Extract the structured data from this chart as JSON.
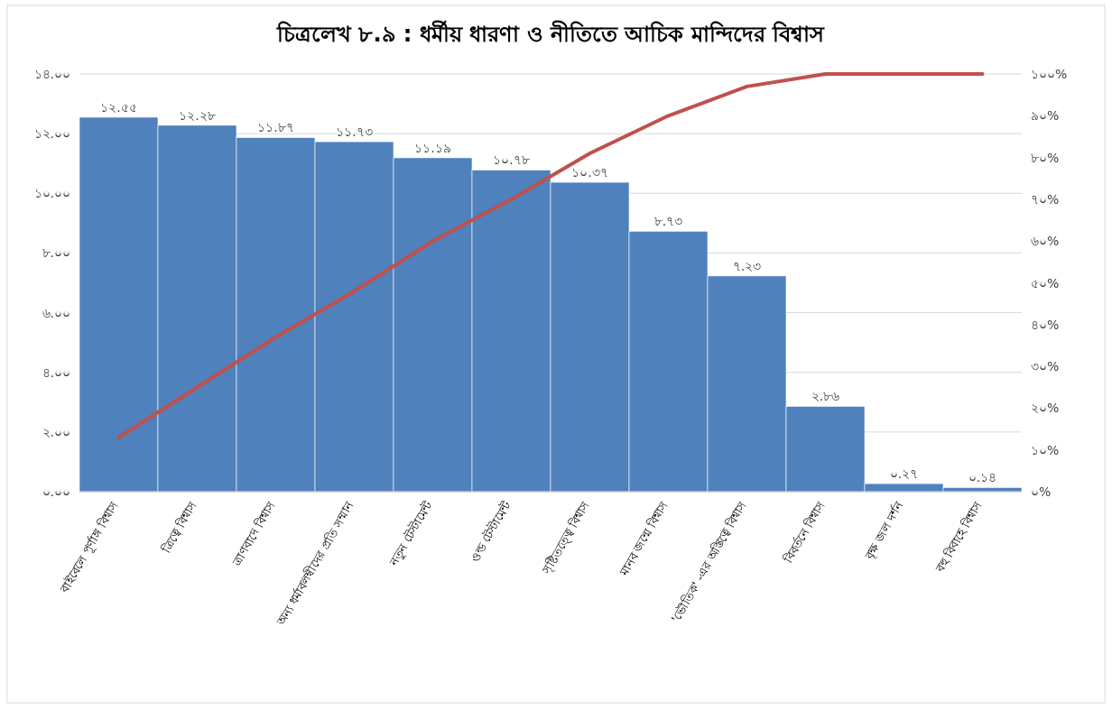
{
  "chart_data": {
    "type": "bar",
    "title": "চিত্রলেখ ৮.৯ : ধর্মীয় ধারণা ও নীতিতে আচিক মান্দিদের বিশ্বাস",
    "categories": [
      "বাইবেলে পূর্ণাঙ্গ বিশ্বাস",
      "ত্রিত্বে বিশ্বাস",
      "ত্রাণবাদে বিশ্বাস",
      "অন্য ধর্মাবলম্বীদের প্রতি সম্মান",
      "নতুন টেস্টামেন্ট",
      "ওল্ড টেস্টামেন্ট",
      "সৃষ্টিতত্ত্বে বিশ্বাস",
      "মানব জন্মে বিশ্বাস",
      "'ভৌতিক' -এর অস্তিত্বে বিশ্বাস",
      "বিবর্তনে বিশ্বাস",
      "বৃক্ষ জল দর্শন",
      "বহু বিবাহে বিশ্বাস"
    ],
    "series": [
      {
        "color": "#4f81bd",
        "values": [
          12.55,
          12.28,
          11.87,
          11.73,
          11.19,
          10.78,
          10.37,
          8.73,
          7.23,
          2.86,
          0.27,
          0.14
        ],
        "value_labels": [
          "১২.৫৫",
          "১২.২৮",
          "১১.৮৭",
          "১১.৭৩",
          "১১.১৯",
          "১০.৭৮",
          "১০.৩৭",
          "৮.৭৩",
          "৭.২৩",
          "২.৮৬",
          "০.২৭",
          "০.১৪"
        ]
      },
      {
        "type": "line",
        "axis": "y2",
        "color": "#c0504d",
        "values": [
          13,
          25,
          37,
          48,
          60,
          70,
          81,
          90,
          97,
          100,
          100,
          100
        ]
      }
    ],
    "ylim": [
      0,
      14
    ],
    "yticks": [
      {
        "value": 0,
        "label": "০.০০"
      },
      {
        "value": 2,
        "label": "২.০০"
      },
      {
        "value": 4,
        "label": "৪.০০"
      },
      {
        "value": 6,
        "label": "৬.০০"
      },
      {
        "value": 8,
        "label": "৮.০০"
      },
      {
        "value": 10,
        "label": "১০.০০"
      },
      {
        "value": 12,
        "label": "১২.০০"
      },
      {
        "value": 14,
        "label": "১৪.০০"
      }
    ],
    "y2lim": [
      0,
      100
    ],
    "y2ticks": [
      {
        "value": 0,
        "label": "০%"
      },
      {
        "value": 10,
        "label": "১০%"
      },
      {
        "value": 20,
        "label": "২০%"
      },
      {
        "value": 30,
        "label": "৩০%"
      },
      {
        "value": 40,
        "label": "৪০%"
      },
      {
        "value": 50,
        "label": "৫০%"
      },
      {
        "value": 60,
        "label": "৬০%"
      },
      {
        "value": 70,
        "label": "৭০%"
      },
      {
        "value": 80,
        "label": "৮০%"
      },
      {
        "value": 90,
        "label": "৯০%"
      },
      {
        "value": 100,
        "label": "১০০%"
      }
    ],
    "grid": "y"
  }
}
